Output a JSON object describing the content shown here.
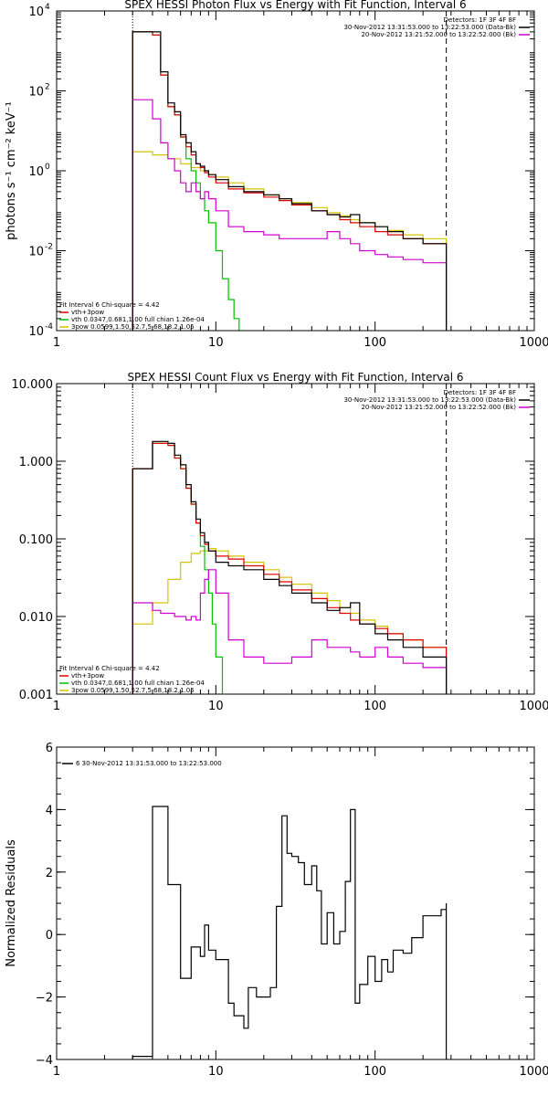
{
  "chart_data": [
    {
      "type": "line",
      "title": "SPEX HESSI Photon Flux vs Energy with Fit Function, Interval 6",
      "xlabel": "",
      "ylabel": "photons s⁻¹ cm⁻² keV⁻¹",
      "xscale": "log",
      "yscale": "log",
      "xlim": [
        1,
        1000
      ],
      "ylim": [
        0.0001,
        10000
      ],
      "x_ticks": [
        {
          "v": 1,
          "label": "1"
        },
        {
          "v": 10,
          "label": "10"
        },
        {
          "v": 100,
          "label": "100"
        },
        {
          "v": 1000,
          "label": "1000"
        }
      ],
      "y_ticks": [
        {
          "v": 0.0001,
          "base": "10",
          "exp": "-4"
        },
        {
          "v": 0.01,
          "base": "10",
          "exp": "-2"
        },
        {
          "v": 1,
          "base": "10",
          "exp": "0"
        },
        {
          "v": 100,
          "base": "10",
          "exp": "2"
        },
        {
          "v": 10000,
          "base": "10",
          "exp": "4"
        }
      ],
      "vlines": [
        {
          "x": 3,
          "style": "dotted",
          "color": "#000000"
        },
        {
          "x": 280,
          "style": "dashed",
          "color": "#000000"
        }
      ],
      "legend_right": [
        {
          "text": "Detectors: 1F 3F 4F 8F",
          "color": ""
        },
        {
          "text": "30-Nov-2012 13:31:53.000 to 13:22:53.000 (Data-Bk)",
          "color": "#000000"
        },
        {
          "text": "20-Nov-2012 13:21:52.000 to 13:22:52.000 (Bk)",
          "color": "#d000d0"
        }
      ],
      "legend_left": [
        {
          "text": "Fit Interval 6   Chi-square = 4.42",
          "color": ""
        },
        {
          "text": "vth+3pow",
          "color": "#e00000"
        },
        {
          "text": "vth 0.0347,0.681,1.00  full chian 1.26e-04",
          "color": "#00c000"
        },
        {
          "text": "3pow 0.0599,1.50,52.7,5.68,18.2,1.05",
          "color": "#d4c400"
        }
      ],
      "series": [
        {
          "name": "Data-Bk",
          "color": "#000000",
          "step": true,
          "x": [
            3,
            3.5,
            4,
            4.5,
            5,
            5.5,
            6,
            6.5,
            7,
            7.5,
            8,
            8.5,
            9,
            10,
            12,
            15,
            20,
            25,
            30,
            40,
            50,
            60,
            70,
            80,
            100,
            120,
            150,
            200,
            280
          ],
          "y": [
            3000,
            3000,
            3000,
            300,
            50,
            30,
            8,
            5,
            3,
            1.5,
            1.3,
            1,
            0.8,
            0.6,
            0.4,
            0.3,
            0.25,
            0.2,
            0.15,
            0.1,
            0.08,
            0.07,
            0.08,
            0.05,
            0.04,
            0.03,
            0.02,
            0.015,
            0.014
          ]
        },
        {
          "name": "Bk",
          "color": "#d000d0",
          "step": true,
          "x": [
            3,
            3.5,
            4,
            4.5,
            5,
            5.5,
            6,
            6.5,
            7,
            7.5,
            8,
            8.5,
            9,
            10,
            12,
            15,
            20,
            25,
            30,
            40,
            50,
            60,
            70,
            80,
            100,
            120,
            150,
            200,
            280
          ],
          "y": [
            60,
            60,
            20,
            5,
            2,
            1,
            0.5,
            0.3,
            0.5,
            0.3,
            0.2,
            0.3,
            0.2,
            0.1,
            0.04,
            0.03,
            0.025,
            0.02,
            0.02,
            0.02,
            0.03,
            0.02,
            0.015,
            0.01,
            0.008,
            0.007,
            0.006,
            0.005,
            0.004
          ]
        },
        {
          "name": "vth+3pow",
          "color": "#e00000",
          "step": true,
          "x": [
            3,
            3.5,
            4,
            4.5,
            5,
            5.5,
            6,
            6.5,
            7,
            7.5,
            8,
            8.5,
            9,
            10,
            12,
            15,
            20,
            25,
            30,
            40,
            50,
            60,
            70,
            80,
            100,
            120,
            150,
            200,
            280
          ],
          "y": [
            3000,
            3000,
            2500,
            250,
            40,
            25,
            7,
            4,
            2.5,
            1.5,
            1.2,
            0.9,
            0.7,
            0.5,
            0.35,
            0.28,
            0.22,
            0.18,
            0.14,
            0.1,
            0.08,
            0.06,
            0.05,
            0.04,
            0.03,
            0.025,
            0.02,
            0.015,
            0.012
          ]
        },
        {
          "name": "vth",
          "color": "#00c000",
          "step": true,
          "x": [
            3,
            3.5,
            4,
            4.5,
            5,
            5.5,
            6,
            6.5,
            7,
            7.5,
            8,
            8.5,
            9,
            10,
            11,
            12,
            13,
            14
          ],
          "y": [
            3000,
            3000,
            2500,
            250,
            40,
            25,
            7,
            2,
            1,
            0.5,
            0.2,
            0.1,
            0.05,
            0.01,
            0.002,
            0.0006,
            0.0002,
            0.0001
          ]
        },
        {
          "name": "3pow",
          "color": "#d4c400",
          "step": true,
          "x": [
            3,
            4,
            5,
            6,
            7,
            8,
            9,
            10,
            12,
            15,
            20,
            25,
            30,
            40,
            50,
            60,
            70,
            80,
            100,
            120,
            150,
            200,
            280
          ],
          "y": [
            3,
            2.5,
            2,
            1.5,
            1.2,
            1,
            0.8,
            0.7,
            0.5,
            0.35,
            0.25,
            0.2,
            0.16,
            0.12,
            0.09,
            0.075,
            0.06,
            0.05,
            0.04,
            0.032,
            0.025,
            0.02,
            0.015
          ]
        }
      ]
    },
    {
      "type": "line",
      "title": "SPEX HESSI Count Flux vs Energy with Fit Function, Interval 6",
      "xlabel": "",
      "ylabel": "",
      "xscale": "log",
      "yscale": "log",
      "xlim": [
        1,
        1000
      ],
      "ylim": [
        0.001,
        10
      ],
      "x_ticks": [
        {
          "v": 1,
          "label": "1"
        },
        {
          "v": 10,
          "label": "10"
        },
        {
          "v": 100,
          "label": "100"
        },
        {
          "v": 1000,
          "label": "1000"
        }
      ],
      "y_ticks": [
        {
          "v": 0.001,
          "label": "0.001"
        },
        {
          "v": 0.01,
          "label": "0.010"
        },
        {
          "v": 0.1,
          "label": "0.100"
        },
        {
          "v": 1,
          "label": "1.000"
        },
        {
          "v": 10,
          "label": "10.000"
        }
      ],
      "vlines": [
        {
          "x": 3,
          "style": "dotted",
          "color": "#000000"
        },
        {
          "x": 280,
          "style": "dashed",
          "color": "#000000"
        }
      ],
      "legend_right": [
        {
          "text": "Detectors: 1F 3F 4F 8F",
          "color": ""
        },
        {
          "text": "30-Nov-2012 13:31:53.000 to 13:22:53.000 (Data-Bk)",
          "color": "#000000"
        },
        {
          "text": "20-Nov-2012 13:21:52.000 to 13:22:52.000 (Bk)",
          "color": "#d000d0"
        }
      ],
      "legend_left": [
        {
          "text": "Fit Interval 6   Chi-square = 4.42",
          "color": ""
        },
        {
          "text": "vth+3pow",
          "color": "#e00000"
        },
        {
          "text": "vth 0.0347,0.681,1.00  full chian 1.26e-04",
          "color": "#00c000"
        },
        {
          "text": "3pow 0.0599,1.50,52.7,5.68,18.2,1.05",
          "color": "#d4c400"
        }
      ],
      "series": [
        {
          "name": "Data-Bk",
          "color": "#000000",
          "step": true,
          "x": [
            3,
            3.5,
            4,
            4.5,
            5,
            5.5,
            6,
            6.5,
            7,
            7.5,
            8,
            8.5,
            9,
            10,
            12,
            15,
            20,
            25,
            30,
            40,
            50,
            60,
            70,
            80,
            100,
            120,
            150,
            200,
            280
          ],
          "y": [
            0.8,
            0.8,
            1.8,
            1.8,
            1.7,
            1.2,
            0.9,
            0.5,
            0.3,
            0.18,
            0.12,
            0.09,
            0.07,
            0.05,
            0.045,
            0.04,
            0.03,
            0.025,
            0.02,
            0.015,
            0.012,
            0.013,
            0.015,
            0.008,
            0.006,
            0.005,
            0.004,
            0.003,
            0.002
          ]
        },
        {
          "name": "Bk",
          "color": "#d000d0",
          "step": true,
          "x": [
            3,
            3.5,
            4,
            4.5,
            5,
            5.5,
            6,
            6.5,
            7,
            7.5,
            8,
            8.5,
            9,
            10,
            12,
            15,
            20,
            25,
            30,
            40,
            50,
            60,
            70,
            80,
            100,
            120,
            150,
            200,
            280
          ],
          "y": [
            0.015,
            0.015,
            0.012,
            0.011,
            0.011,
            0.01,
            0.01,
            0.009,
            0.01,
            0.009,
            0.02,
            0.03,
            0.04,
            0.02,
            0.005,
            0.003,
            0.0025,
            0.0025,
            0.003,
            0.005,
            0.004,
            0.004,
            0.0035,
            0.003,
            0.004,
            0.003,
            0.0025,
            0.0022,
            0.0015
          ]
        },
        {
          "name": "vth+3pow",
          "color": "#e00000",
          "step": true,
          "x": [
            3,
            3.5,
            4,
            4.5,
            5,
            5.5,
            6,
            6.5,
            7,
            7.5,
            8,
            8.5,
            9,
            10,
            12,
            15,
            20,
            25,
            30,
            40,
            50,
            60,
            70,
            80,
            100,
            120,
            150,
            200,
            280
          ],
          "y": [
            0.8,
            0.8,
            1.7,
            1.7,
            1.6,
            1.1,
            0.8,
            0.45,
            0.28,
            0.16,
            0.11,
            0.085,
            0.07,
            0.06,
            0.055,
            0.045,
            0.035,
            0.028,
            0.022,
            0.017,
            0.013,
            0.011,
            0.009,
            0.008,
            0.007,
            0.006,
            0.005,
            0.004,
            0.003
          ]
        },
        {
          "name": "vth",
          "color": "#00c000",
          "step": true,
          "x": [
            3,
            3.5,
            4,
            4.5,
            5,
            5.5,
            6,
            6.5,
            7,
            7.5,
            8,
            8.5,
            9,
            9.5,
            10,
            11
          ],
          "y": [
            0.8,
            0.8,
            1.7,
            1.7,
            1.6,
            1.1,
            0.8,
            0.45,
            0.28,
            0.16,
            0.08,
            0.04,
            0.02,
            0.008,
            0.003,
            0.001
          ]
        },
        {
          "name": "3pow",
          "color": "#d4c400",
          "step": true,
          "x": [
            3,
            4,
            5,
            6,
            7,
            8,
            9,
            10,
            12,
            15,
            20,
            25,
            30,
            40,
            50,
            60,
            70,
            80,
            100,
            120,
            150,
            200,
            280
          ],
          "y": [
            0.008,
            0.015,
            0.03,
            0.05,
            0.065,
            0.07,
            0.075,
            0.07,
            0.06,
            0.05,
            0.04,
            0.032,
            0.026,
            0.02,
            0.016,
            0.013,
            0.011,
            0.009,
            0.0075,
            0.006,
            0.005,
            0.004,
            0.003
          ]
        }
      ]
    },
    {
      "type": "line",
      "title": "",
      "xlabel": "",
      "ylabel": "Normalized Residuals",
      "xscale": "log",
      "yscale": "linear",
      "xlim": [
        1,
        1000
      ],
      "ylim": [
        -4,
        6
      ],
      "x_ticks": [
        {
          "v": 1,
          "label": "1"
        },
        {
          "v": 10,
          "label": "10"
        },
        {
          "v": 100,
          "label": "100"
        },
        {
          "v": 1000,
          "label": "1000"
        }
      ],
      "y_ticks": [
        {
          "v": -4,
          "label": "−4"
        },
        {
          "v": -2,
          "label": "−2"
        },
        {
          "v": 0,
          "label": "0"
        },
        {
          "v": 2,
          "label": "2"
        },
        {
          "v": 4,
          "label": "4"
        },
        {
          "v": 6,
          "label": "6"
        }
      ],
      "vlines": [],
      "legend_right": [],
      "legend_left": [
        {
          "text": "6  30-Nov-2012 13:31:53.000 to 13:22:53.000",
          "color": "#000000",
          "swatch_top": true
        }
      ],
      "series": [
        {
          "name": "",
          "color": "#000000",
          "step": true,
          "x": [
            3,
            4,
            4.5,
            5,
            5.5,
            6,
            6.5,
            7,
            7.5,
            8,
            8.5,
            9,
            10,
            12,
            13,
            15,
            16,
            18,
            20,
            22,
            24,
            26,
            28,
            30,
            33,
            36,
            40,
            43,
            46,
            50,
            55,
            60,
            65,
            70,
            75,
            80,
            90,
            100,
            110,
            120,
            130,
            150,
            170,
            200,
            230,
            260,
            280
          ],
          "y": [
            -3.9,
            4.1,
            4.1,
            1.6,
            1.6,
            -1.4,
            -1.4,
            -0.4,
            -0.4,
            -0.7,
            0.3,
            -0.5,
            -0.8,
            -2.2,
            -2.6,
            -3,
            -1.7,
            -2,
            -2,
            -1.7,
            0.9,
            3.8,
            2.6,
            2.5,
            2.3,
            1.6,
            2.2,
            1.4,
            -0.3,
            0.7,
            -0.3,
            0.1,
            1.7,
            4,
            -2.2,
            -1.6,
            -0.7,
            -1.5,
            -0.8,
            -1.2,
            -0.5,
            -0.6,
            -0.1,
            0.6,
            0.6,
            0.8,
            1
          ]
        }
      ]
    }
  ]
}
